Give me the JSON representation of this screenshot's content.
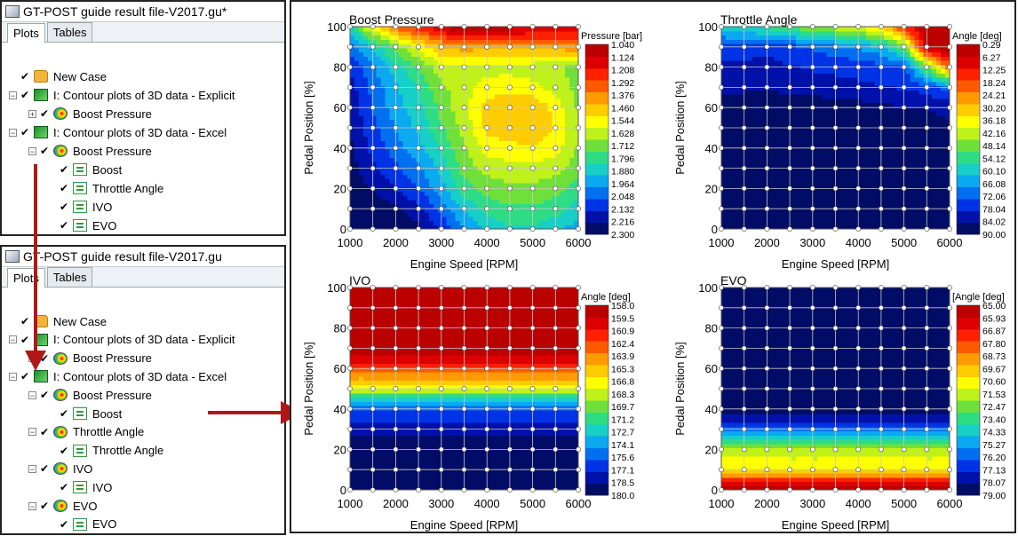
{
  "top_panel": {
    "title": "GT-POST guide result file-V2017.gu*",
    "tabs": [
      {
        "label": "Plots",
        "active": true
      },
      {
        "label": "Tables",
        "active": false
      }
    ],
    "items": [
      {
        "label": "New Case",
        "level": 0,
        "icon": "folder-icon",
        "expander": "",
        "checked": true
      },
      {
        "label": "I: Contour plots of 3D data - Explicit",
        "level": 0,
        "icon": "contour-3d-icon",
        "expander": "-",
        "checked": true
      },
      {
        "label": "Boost Pressure",
        "level": 1,
        "icon": "contour-plot-icon",
        "expander": "+",
        "checked": true
      },
      {
        "label": "I: Contour plots of 3D data - Excel",
        "level": 0,
        "icon": "contour-3d-icon",
        "expander": "-",
        "checked": true
      },
      {
        "label": "Boost Pressure",
        "level": 1,
        "icon": "contour-plot-icon",
        "expander": "-",
        "checked": true
      },
      {
        "label": "Boost",
        "level": 2,
        "icon": "sheet-icon",
        "expander": "",
        "checked": true
      },
      {
        "label": "Throttle Angle",
        "level": 2,
        "icon": "sheet-icon",
        "expander": "",
        "checked": true
      },
      {
        "label": "IVO",
        "level": 2,
        "icon": "sheet-icon",
        "expander": "",
        "checked": true
      },
      {
        "label": "EVO",
        "level": 2,
        "icon": "sheet-icon",
        "expander": "",
        "checked": true
      }
    ]
  },
  "bottom_panel": {
    "title": "GT-POST guide result file-V2017.gu",
    "tabs": [
      {
        "label": "Plots",
        "active": true
      },
      {
        "label": "Tables",
        "active": false
      }
    ],
    "items": [
      {
        "label": "New Case",
        "level": 0,
        "icon": "folder-icon",
        "expander": "",
        "checked": true
      },
      {
        "label": "I: Contour plots of 3D data - Explicit",
        "level": 0,
        "icon": "contour-3d-icon",
        "expander": "-",
        "checked": true
      },
      {
        "label": "Boost Pressure",
        "level": 1,
        "icon": "contour-plot-icon",
        "expander": "+",
        "checked": true
      },
      {
        "label": "I: Contour plots of 3D data - Excel",
        "level": 0,
        "icon": "contour-3d-icon",
        "expander": "-",
        "checked": true
      },
      {
        "label": "Boost Pressure",
        "level": 1,
        "icon": "contour-plot-icon",
        "expander": "-",
        "checked": true
      },
      {
        "label": "Boost",
        "level": 2,
        "icon": "sheet-icon",
        "expander": "",
        "checked": true
      },
      {
        "label": "Throttle Angle",
        "level": 1,
        "icon": "contour-plot-icon",
        "expander": "-",
        "checked": true
      },
      {
        "label": "Throttle Angle",
        "level": 2,
        "icon": "sheet-icon",
        "expander": "",
        "checked": true
      },
      {
        "label": "IVO",
        "level": 1,
        "icon": "contour-plot-icon",
        "expander": "-",
        "checked": true
      },
      {
        "label": "IVO",
        "level": 2,
        "icon": "sheet-icon",
        "expander": "",
        "checked": true
      },
      {
        "label": "EVO",
        "level": 1,
        "icon": "contour-plot-icon",
        "expander": "-",
        "checked": true
      },
      {
        "label": "EVO",
        "level": 2,
        "icon": "sheet-icon",
        "expander": "",
        "checked": true
      }
    ]
  },
  "colors": {
    "arrow": "#b01818",
    "colormap": [
      "#000c66",
      "#0011aa",
      "#0033e6",
      "#0070f0",
      "#0aa9f0",
      "#17cfc6",
      "#2fdc86",
      "#6fe03a",
      "#bff21a",
      "#ffff00",
      "#ffcc00",
      "#ff9a00",
      "#ff5a00",
      "#ff2000",
      "#dd0000",
      "#bb0000"
    ]
  },
  "chart_data": [
    {
      "type": "heatmap",
      "title": "Boost Pressure",
      "xlabel": "Engine Speed [RPM]",
      "ylabel": "Pedal Position [%]",
      "legend_title": "Pressure [bar]",
      "x_ticks": [
        "1000",
        "2000",
        "3000",
        "4000",
        "5000",
        "6000"
      ],
      "y_ticks": [
        "0",
        "20",
        "40",
        "60",
        "80",
        "100"
      ],
      "xlim": [
        1000,
        6000
      ],
      "ylim": [
        0,
        100
      ],
      "legend_labels": [
        "1.040",
        "1.124",
        "1.208",
        "1.292",
        "1.376",
        "1.460",
        "1.544",
        "1.628",
        "1.712",
        "1.796",
        "1.880",
        "1.964",
        "2.048",
        "2.132",
        "2.216",
        "2.300"
      ],
      "x": [
        1000,
        1500,
        2000,
        2500,
        3000,
        3500,
        4000,
        4500,
        5000,
        5500,
        6000
      ],
      "y": [
        0,
        10,
        20,
        30,
        40,
        50,
        60,
        70,
        80,
        90,
        100
      ],
      "z": [
        [
          1.04,
          1.04,
          1.06,
          1.1,
          1.2,
          1.35,
          1.45,
          1.5,
          1.5,
          1.45,
          1.4
        ],
        [
          1.04,
          1.06,
          1.1,
          1.16,
          1.3,
          1.45,
          1.55,
          1.58,
          1.58,
          1.55,
          1.48
        ],
        [
          1.06,
          1.12,
          1.2,
          1.28,
          1.4,
          1.55,
          1.62,
          1.65,
          1.65,
          1.62,
          1.55
        ],
        [
          1.08,
          1.18,
          1.26,
          1.34,
          1.46,
          1.62,
          1.7,
          1.72,
          1.72,
          1.7,
          1.62
        ],
        [
          1.1,
          1.22,
          1.32,
          1.4,
          1.52,
          1.66,
          1.78,
          1.8,
          1.82,
          1.78,
          1.66
        ],
        [
          1.12,
          1.25,
          1.36,
          1.45,
          1.58,
          1.7,
          1.85,
          1.88,
          1.9,
          1.82,
          1.68
        ],
        [
          1.14,
          1.28,
          1.4,
          1.48,
          1.62,
          1.72,
          1.86,
          1.9,
          1.9,
          1.8,
          1.66
        ],
        [
          1.16,
          1.3,
          1.42,
          1.52,
          1.65,
          1.72,
          1.78,
          1.8,
          1.78,
          1.72,
          1.64
        ],
        [
          1.2,
          1.34,
          1.48,
          1.58,
          1.72,
          1.72,
          1.72,
          1.72,
          1.7,
          1.68,
          1.64
        ],
        [
          1.3,
          1.46,
          1.62,
          1.78,
          1.9,
          1.95,
          1.92,
          1.9,
          1.92,
          1.94,
          1.96
        ],
        [
          1.5,
          1.8,
          2.0,
          2.12,
          2.22,
          2.3,
          2.3,
          2.26,
          2.24,
          2.22,
          2.2
        ]
      ]
    },
    {
      "type": "heatmap",
      "title": "Throttle Angle",
      "xlabel": "Engine Speed [RPM]",
      "ylabel": "Pedal Position [%]",
      "legend_title": "Angle [deg]",
      "x_ticks": [
        "1000",
        "2000",
        "3000",
        "4000",
        "5000",
        "6000"
      ],
      "y_ticks": [
        "0",
        "20",
        "40",
        "60",
        "80",
        "100"
      ],
      "xlim": [
        1000,
        6000
      ],
      "ylim": [
        0,
        100
      ],
      "legend_labels": [
        "0.29",
        "6.27",
        "12.25",
        "18.24",
        "24.21",
        "30.20",
        "36.18",
        "42.16",
        "48.14",
        "54.12",
        "60.10",
        "66.08",
        "72.06",
        "78.04",
        "84.02",
        "90.00"
      ],
      "x": [
        1000,
        1500,
        2000,
        2500,
        3000,
        3500,
        4000,
        4500,
        5000,
        5500,
        6000
      ],
      "y": [
        0,
        10,
        20,
        30,
        40,
        50,
        60,
        70,
        80,
        90,
        100
      ],
      "z": [
        [
          0.3,
          0.3,
          0.3,
          0.3,
          0.3,
          0.3,
          0.3,
          0.3,
          0.3,
          0.3,
          0.3
        ],
        [
          0.3,
          0.3,
          0.3,
          0.3,
          0.3,
          0.3,
          0.3,
          0.3,
          0.3,
          0.3,
          0.3
        ],
        [
          0.3,
          0.3,
          0.3,
          0.3,
          0.3,
          0.3,
          0.3,
          0.3,
          0.3,
          0.3,
          1.0
        ],
        [
          0.3,
          0.3,
          0.3,
          0.3,
          0.3,
          0.3,
          0.3,
          0.3,
          0.3,
          1.5,
          3.0
        ],
        [
          0.3,
          0.3,
          0.3,
          0.3,
          0.3,
          0.3,
          0.3,
          1.0,
          2.5,
          3.5,
          4.5
        ],
        [
          0.3,
          0.3,
          0.3,
          0.3,
          0.3,
          0.3,
          1.0,
          2.5,
          3.5,
          4.5,
          5.5
        ],
        [
          0.5,
          0.6,
          0.6,
          0.7,
          1.0,
          2.0,
          3.0,
          4.5,
          5.5,
          6.0,
          6.5
        ],
        [
          8.0,
          7.5,
          7.0,
          8.0,
          9.0,
          10.0,
          10.5,
          11.0,
          12.0,
          14.0,
          20.0
        ],
        [
          10.0,
          10.0,
          9.5,
          11.0,
          12.0,
          12.5,
          13.0,
          14.5,
          16.0,
          40.0,
          70.0
        ],
        [
          14.0,
          14.0,
          13.0,
          15.0,
          18.0,
          21.0,
          24.0,
          28.0,
          40.0,
          88.0,
          90.0
        ],
        [
          32.0,
          34.0,
          36.0,
          40.0,
          45.0,
          48.0,
          52.0,
          58.0,
          75.0,
          90.0,
          90.0
        ]
      ]
    },
    {
      "type": "heatmap",
      "title": "IVO",
      "xlabel": "Engine Speed [RPM]",
      "ylabel": "Pedal Position [%]",
      "legend_title": "Angle [deg]",
      "x_ticks": [
        "1000",
        "2000",
        "3000",
        "4000",
        "5000",
        "6000"
      ],
      "y_ticks": [
        "0",
        "20",
        "40",
        "60",
        "80",
        "100"
      ],
      "xlim": [
        1000,
        6000
      ],
      "ylim": [
        0,
        100
      ],
      "legend_labels": [
        "158.0",
        "159.5",
        "160.9",
        "162.4",
        "163.9",
        "165.3",
        "166.8",
        "168.3",
        "169.7",
        "171.2",
        "172.7",
        "174.1",
        "175.6",
        "177.1",
        "178.5",
        "180.0"
      ],
      "x": [
        1000,
        1500,
        2000,
        2500,
        3000,
        3500,
        4000,
        4500,
        5000,
        5500,
        6000
      ],
      "y": [
        0,
        10,
        20,
        30,
        40,
        50,
        60,
        70,
        80,
        90,
        100
      ],
      "z": [
        [
          158.0,
          158.0,
          158.0,
          158.0,
          158.0,
          158.0,
          158.0,
          158.0,
          158.0,
          158.0,
          158.0
        ],
        [
          158.0,
          158.0,
          158.0,
          158.0,
          158.0,
          158.0,
          158.0,
          158.0,
          158.0,
          158.0,
          158.0
        ],
        [
          158.0,
          158.0,
          158.0,
          158.0,
          158.0,
          158.0,
          158.0,
          158.0,
          158.0,
          158.0,
          158.0
        ],
        [
          160.0,
          160.0,
          160.0,
          160.0,
          160.0,
          160.0,
          160.0,
          160.0,
          160.0,
          160.0,
          160.0
        ],
        [
          162.0,
          162.0,
          162.0,
          162.0,
          162.0,
          162.0,
          162.0,
          162.0,
          162.0,
          162.0,
          162.0
        ],
        [
          170.0,
          170.0,
          170.0,
          170.0,
          170.0,
          170.0,
          170.0,
          170.0,
          170.0,
          170.0,
          170.0
        ],
        [
          176.0,
          176.0,
          176.0,
          176.0,
          176.0,
          176.0,
          176.0,
          176.0,
          176.0,
          176.0,
          176.0
        ],
        [
          180.0,
          180.0,
          180.0,
          180.0,
          180.0,
          180.0,
          180.0,
          180.0,
          180.0,
          180.0,
          180.0
        ],
        [
          180.0,
          180.0,
          180.0,
          180.0,
          180.0,
          180.0,
          180.0,
          180.0,
          180.0,
          180.0,
          180.0
        ],
        [
          180.0,
          180.0,
          180.0,
          180.0,
          180.0,
          180.0,
          180.0,
          180.0,
          180.0,
          180.0,
          180.0
        ],
        [
          180.0,
          180.0,
          180.0,
          180.0,
          180.0,
          180.0,
          180.0,
          180.0,
          180.0,
          180.0,
          180.0
        ]
      ]
    },
    {
      "type": "heatmap",
      "title": "EVO",
      "xlabel": "Engine Speed [RPM]",
      "ylabel": "Pedal Position [%]",
      "legend_title": "[Angle [deg]",
      "x_ticks": [
        "1000",
        "2000",
        "3000",
        "4000",
        "5000",
        "6000"
      ],
      "y_ticks": [
        "0",
        "20",
        "40",
        "60",
        "80",
        "100"
      ],
      "xlim": [
        1000,
        6000
      ],
      "ylim": [
        0,
        100
      ],
      "legend_labels": [
        "65.00",
        "65.93",
        "66.87",
        "67.80",
        "68.73",
        "69.67",
        "70.60",
        "71.53",
        "72.47",
        "73.40",
        "74.33",
        "75.27",
        "76.20",
        "77.13",
        "78.07",
        "79.00"
      ],
      "x": [
        1000,
        1500,
        2000,
        2500,
        3000,
        3500,
        4000,
        4500,
        5000,
        5500,
        6000
      ],
      "y": [
        0,
        10,
        20,
        30,
        40,
        50,
        60,
        70,
        80,
        90,
        100
      ],
      "z": [
        [
          79.0,
          79.0,
          79.0,
          79.0,
          79.0,
          79.0,
          79.0,
          79.0,
          79.0,
          79.0,
          79.0
        ],
        [
          74.0,
          74.0,
          74.0,
          74.0,
          74.0,
          74.0,
          74.0,
          74.0,
          74.0,
          74.0,
          74.0
        ],
        [
          72.0,
          72.0,
          72.0,
          72.0,
          72.0,
          72.0,
          72.0,
          72.0,
          72.0,
          72.0,
          72.0
        ],
        [
          68.0,
          68.0,
          68.0,
          68.0,
          68.0,
          68.0,
          68.0,
          68.0,
          68.0,
          68.0,
          68.0
        ],
        [
          65.0,
          65.0,
          65.0,
          65.0,
          65.0,
          65.0,
          65.0,
          65.0,
          65.0,
          65.0,
          65.0
        ],
        [
          65.0,
          65.0,
          65.0,
          65.0,
          65.0,
          65.0,
          65.0,
          65.0,
          65.0,
          65.0,
          65.0
        ],
        [
          65.0,
          65.0,
          65.0,
          65.0,
          65.0,
          65.0,
          65.0,
          65.0,
          65.0,
          65.0,
          65.0
        ],
        [
          65.0,
          65.0,
          65.0,
          65.0,
          65.0,
          65.0,
          65.0,
          65.0,
          65.0,
          65.0,
          65.0
        ],
        [
          65.0,
          65.0,
          65.0,
          65.0,
          65.0,
          65.0,
          65.0,
          65.0,
          65.0,
          65.0,
          65.0
        ],
        [
          65.0,
          65.0,
          65.0,
          65.0,
          65.0,
          65.0,
          65.0,
          65.0,
          65.0,
          65.0,
          65.0
        ],
        [
          65.0,
          65.0,
          65.0,
          65.0,
          65.0,
          65.0,
          65.0,
          65.0,
          65.0,
          65.0,
          65.0
        ]
      ]
    }
  ]
}
